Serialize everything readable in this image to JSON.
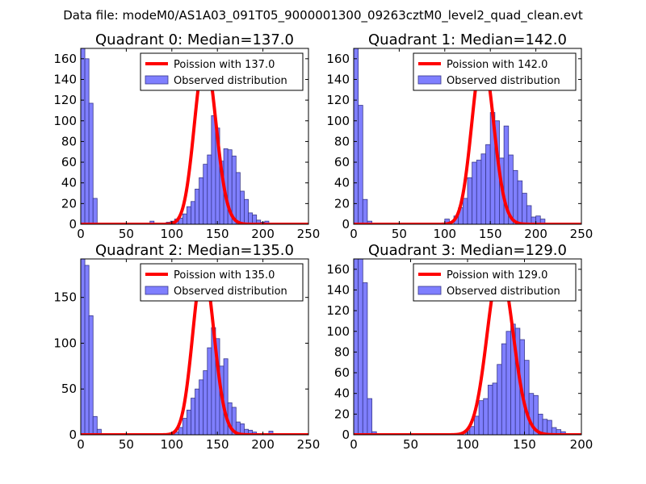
{
  "figure": {
    "suptitle": "Data file: modeM0/AS1A03_091T05_9000001300_09263cztM0_level2_quad_clean.evt"
  },
  "colors": {
    "curve": "#ff0000",
    "bar_fill": "#7f7fff",
    "bar_edge": "#38388a"
  },
  "chart_data": [
    {
      "type": "bar",
      "title": "Quadrant 0: Median=137.0",
      "xlim": [
        0,
        250
      ],
      "ylim": [
        0,
        170
      ],
      "xticks": [
        0,
        50,
        100,
        150,
        200,
        250
      ],
      "yticks": [
        0,
        20,
        40,
        60,
        80,
        100,
        120,
        140,
        160
      ],
      "legend": {
        "position": "top-right",
        "labels": [
          "Poission with 137.0",
          "Observed distribution"
        ]
      },
      "poisson_mean": 137.0,
      "bin_width": 4.5,
      "bins": [
        {
          "x": 0,
          "count": 170
        },
        {
          "x": 4.5,
          "count": 160
        },
        {
          "x": 9,
          "count": 117
        },
        {
          "x": 13.5,
          "count": 25
        },
        {
          "x": 76,
          "count": 3
        },
        {
          "x": 94,
          "count": 2
        },
        {
          "x": 98.5,
          "count": 3
        },
        {
          "x": 103,
          "count": 5
        },
        {
          "x": 107.5,
          "count": 6
        },
        {
          "x": 112,
          "count": 10
        },
        {
          "x": 116.5,
          "count": 17
        },
        {
          "x": 121,
          "count": 22
        },
        {
          "x": 125.5,
          "count": 34
        },
        {
          "x": 130,
          "count": 45
        },
        {
          "x": 134.5,
          "count": 58
        },
        {
          "x": 139,
          "count": 67
        },
        {
          "x": 143.5,
          "count": 105
        },
        {
          "x": 148,
          "count": 93
        },
        {
          "x": 152.5,
          "count": 61
        },
        {
          "x": 157,
          "count": 73
        },
        {
          "x": 161.5,
          "count": 72
        },
        {
          "x": 166,
          "count": 66
        },
        {
          "x": 170.5,
          "count": 50
        },
        {
          "x": 175,
          "count": 32
        },
        {
          "x": 179.5,
          "count": 24
        },
        {
          "x": 184,
          "count": 11
        },
        {
          "x": 188.5,
          "count": 9
        },
        {
          "x": 193,
          "count": 4
        },
        {
          "x": 197.5,
          "count": 2
        },
        {
          "x": 202,
          "count": 3
        }
      ]
    },
    {
      "type": "bar",
      "title": "Quadrant 1: Median=142.0",
      "xlim": [
        0,
        250
      ],
      "ylim": [
        0,
        170
      ],
      "xticks": [
        0,
        50,
        100,
        150,
        200,
        250
      ],
      "yticks": [
        0,
        20,
        40,
        60,
        80,
        100,
        120,
        140,
        160
      ],
      "legend": {
        "position": "top-right",
        "labels": [
          "Poission with 142.0",
          "Observed distribution"
        ]
      },
      "poisson_mean": 142.0,
      "bin_width": 5,
      "bins": [
        {
          "x": 0,
          "count": 170
        },
        {
          "x": 5,
          "count": 115
        },
        {
          "x": 10,
          "count": 24
        },
        {
          "x": 15,
          "count": 3
        },
        {
          "x": 100,
          "count": 5
        },
        {
          "x": 110,
          "count": 8
        },
        {
          "x": 115,
          "count": 16
        },
        {
          "x": 120,
          "count": 25
        },
        {
          "x": 125,
          "count": 45
        },
        {
          "x": 130,
          "count": 60
        },
        {
          "x": 135,
          "count": 62
        },
        {
          "x": 140,
          "count": 68
        },
        {
          "x": 145,
          "count": 77
        },
        {
          "x": 150,
          "count": 108
        },
        {
          "x": 155,
          "count": 100
        },
        {
          "x": 160,
          "count": 64
        },
        {
          "x": 165,
          "count": 95
        },
        {
          "x": 170,
          "count": 67
        },
        {
          "x": 175,
          "count": 52
        },
        {
          "x": 180,
          "count": 42
        },
        {
          "x": 185,
          "count": 30
        },
        {
          "x": 190,
          "count": 18
        },
        {
          "x": 195,
          "count": 7
        },
        {
          "x": 200,
          "count": 8
        },
        {
          "x": 205,
          "count": 5
        }
      ]
    },
    {
      "type": "bar",
      "title": "Quadrant 2: Median=135.0",
      "xlim": [
        0,
        250
      ],
      "ylim": [
        0,
        192
      ],
      "xticks": [
        0,
        50,
        100,
        150,
        200,
        250
      ],
      "yticks": [
        0,
        50,
        100,
        150
      ],
      "legend": {
        "position": "top-right",
        "labels": [
          "Poission with 135.0",
          "Observed distribution"
        ]
      },
      "poisson_mean": 135.0,
      "bin_width": 4.5,
      "bins": [
        {
          "x": 0,
          "count": 192
        },
        {
          "x": 4.5,
          "count": 185
        },
        {
          "x": 9,
          "count": 130
        },
        {
          "x": 13.5,
          "count": 20
        },
        {
          "x": 18,
          "count": 6
        },
        {
          "x": 103,
          "count": 3
        },
        {
          "x": 107.5,
          "count": 8
        },
        {
          "x": 112,
          "count": 18
        },
        {
          "x": 116.5,
          "count": 27
        },
        {
          "x": 121,
          "count": 40
        },
        {
          "x": 125.5,
          "count": 50
        },
        {
          "x": 130,
          "count": 60
        },
        {
          "x": 134.5,
          "count": 70
        },
        {
          "x": 139,
          "count": 95
        },
        {
          "x": 143.5,
          "count": 117
        },
        {
          "x": 148,
          "count": 105
        },
        {
          "x": 152.5,
          "count": 75
        },
        {
          "x": 157,
          "count": 83
        },
        {
          "x": 161.5,
          "count": 35
        },
        {
          "x": 166,
          "count": 30
        },
        {
          "x": 170.5,
          "count": 14
        },
        {
          "x": 175,
          "count": 12
        },
        {
          "x": 179.5,
          "count": 6
        },
        {
          "x": 184,
          "count": 5
        },
        {
          "x": 188.5,
          "count": 3
        },
        {
          "x": 193,
          "count": 1
        },
        {
          "x": 197.5,
          "count": 1
        },
        {
          "x": 202,
          "count": 1
        },
        {
          "x": 206.5,
          "count": 4
        }
      ]
    },
    {
      "type": "bar",
      "title": "Quadrant 3: Median=129.0",
      "xlim": [
        0,
        200
      ],
      "ylim": [
        0,
        170
      ],
      "xticks": [
        0,
        50,
        100,
        150,
        200
      ],
      "yticks": [
        0,
        20,
        40,
        60,
        80,
        100,
        120,
        140,
        160
      ],
      "legend": {
        "position": "top-right",
        "labels": [
          "Poission with 129.0",
          "Observed distribution"
        ]
      },
      "poisson_mean": 129.0,
      "bin_width": 4,
      "bins": [
        {
          "x": 0,
          "count": 170
        },
        {
          "x": 4,
          "count": 170
        },
        {
          "x": 8,
          "count": 147
        },
        {
          "x": 12,
          "count": 35
        },
        {
          "x": 16,
          "count": 3
        },
        {
          "x": 98,
          "count": 4
        },
        {
          "x": 102,
          "count": 8
        },
        {
          "x": 106,
          "count": 18
        },
        {
          "x": 110,
          "count": 33
        },
        {
          "x": 114,
          "count": 35
        },
        {
          "x": 118,
          "count": 48
        },
        {
          "x": 122,
          "count": 50
        },
        {
          "x": 126,
          "count": 68
        },
        {
          "x": 130,
          "count": 88
        },
        {
          "x": 134,
          "count": 100
        },
        {
          "x": 138,
          "count": 107
        },
        {
          "x": 142,
          "count": 103
        },
        {
          "x": 146,
          "count": 92
        },
        {
          "x": 150,
          "count": 72
        },
        {
          "x": 154,
          "count": 40
        },
        {
          "x": 158,
          "count": 38
        },
        {
          "x": 162,
          "count": 20
        },
        {
          "x": 166,
          "count": 15
        },
        {
          "x": 170,
          "count": 14
        },
        {
          "x": 174,
          "count": 7
        },
        {
          "x": 178,
          "count": 5
        },
        {
          "x": 182,
          "count": 3
        },
        {
          "x": 186,
          "count": 1
        },
        {
          "x": 190,
          "count": 1
        },
        {
          "x": 194,
          "count": 1
        }
      ]
    }
  ]
}
